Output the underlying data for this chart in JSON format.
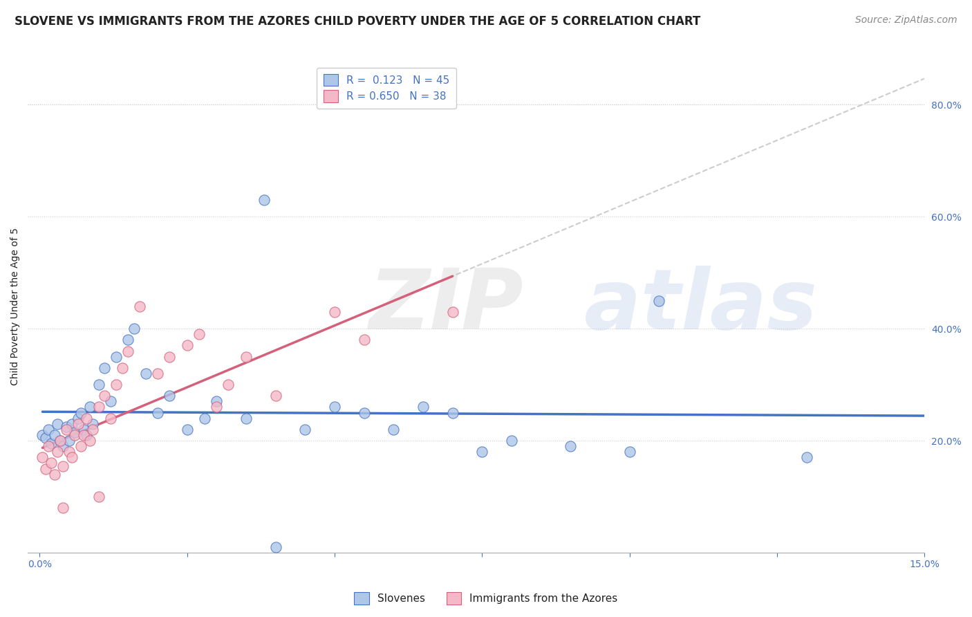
{
  "title": "SLOVENE VS IMMIGRANTS FROM THE AZORES CHILD POVERTY UNDER THE AGE OF 5 CORRELATION CHART",
  "source": "Source: ZipAtlas.com",
  "ylabel": "Child Poverty Under the Age of 5",
  "xlim": [
    0.0,
    15.0
  ],
  "ylim": [
    0.0,
    88.0
  ],
  "right_yticks": [
    20.0,
    40.0,
    60.0,
    80.0
  ],
  "legend_labels": [
    "Slovenes",
    "Immigrants from the Azores"
  ],
  "slovene_R": 0.123,
  "slovene_N": 45,
  "azores_R": 0.65,
  "azores_N": 38,
  "slovene_color": "#aec6e8",
  "azores_color": "#f4b8c8",
  "slovene_line_color": "#4472c4",
  "azores_line_color": "#d4607a",
  "regression_line_color": "#c0c0c0",
  "background_color": "#ffffff",
  "grid_color": "#d0d0d0",
  "title_color": "#222222",
  "source_color": "#888888",
  "label_color": "#4472c4",
  "slovene_scatter": [
    [
      0.05,
      21.0
    ],
    [
      0.1,
      20.5
    ],
    [
      0.15,
      22.0
    ],
    [
      0.2,
      19.5
    ],
    [
      0.25,
      21.0
    ],
    [
      0.3,
      23.0
    ],
    [
      0.35,
      20.0
    ],
    [
      0.4,
      19.0
    ],
    [
      0.45,
      22.5
    ],
    [
      0.5,
      20.0
    ],
    [
      0.55,
      23.0
    ],
    [
      0.6,
      21.5
    ],
    [
      0.65,
      24.0
    ],
    [
      0.7,
      25.0
    ],
    [
      0.75,
      22.0
    ],
    [
      0.8,
      21.0
    ],
    [
      0.85,
      26.0
    ],
    [
      0.9,
      23.0
    ],
    [
      1.0,
      30.0
    ],
    [
      1.1,
      33.0
    ],
    [
      1.2,
      27.0
    ],
    [
      1.3,
      35.0
    ],
    [
      1.5,
      38.0
    ],
    [
      1.6,
      40.0
    ],
    [
      1.8,
      32.0
    ],
    [
      2.0,
      25.0
    ],
    [
      2.2,
      28.0
    ],
    [
      2.5,
      22.0
    ],
    [
      2.8,
      24.0
    ],
    [
      3.0,
      27.0
    ],
    [
      3.5,
      24.0
    ],
    [
      3.8,
      63.0
    ],
    [
      4.5,
      22.0
    ],
    [
      5.0,
      26.0
    ],
    [
      5.5,
      25.0
    ],
    [
      6.0,
      22.0
    ],
    [
      6.5,
      26.0
    ],
    [
      7.0,
      25.0
    ],
    [
      7.5,
      18.0
    ],
    [
      8.0,
      20.0
    ],
    [
      9.0,
      19.0
    ],
    [
      10.0,
      18.0
    ],
    [
      10.5,
      45.0
    ],
    [
      13.0,
      17.0
    ],
    [
      4.0,
      1.0
    ]
  ],
  "azores_scatter": [
    [
      0.05,
      17.0
    ],
    [
      0.1,
      15.0
    ],
    [
      0.15,
      19.0
    ],
    [
      0.2,
      16.0
    ],
    [
      0.25,
      14.0
    ],
    [
      0.3,
      18.0
    ],
    [
      0.35,
      20.0
    ],
    [
      0.4,
      15.5
    ],
    [
      0.45,
      22.0
    ],
    [
      0.5,
      18.0
    ],
    [
      0.55,
      17.0
    ],
    [
      0.6,
      21.0
    ],
    [
      0.65,
      23.0
    ],
    [
      0.7,
      19.0
    ],
    [
      0.75,
      21.0
    ],
    [
      0.8,
      24.0
    ],
    [
      0.85,
      20.0
    ],
    [
      0.9,
      22.0
    ],
    [
      1.0,
      26.0
    ],
    [
      1.1,
      28.0
    ],
    [
      1.2,
      24.0
    ],
    [
      1.3,
      30.0
    ],
    [
      1.4,
      33.0
    ],
    [
      1.5,
      36.0
    ],
    [
      1.7,
      44.0
    ],
    [
      2.0,
      32.0
    ],
    [
      2.2,
      35.0
    ],
    [
      2.5,
      37.0
    ],
    [
      2.7,
      39.0
    ],
    [
      3.0,
      26.0
    ],
    [
      3.2,
      30.0
    ],
    [
      3.5,
      35.0
    ],
    [
      4.0,
      28.0
    ],
    [
      5.0,
      43.0
    ],
    [
      5.5,
      38.0
    ],
    [
      7.0,
      43.0
    ],
    [
      0.4,
      8.0
    ],
    [
      1.0,
      10.0
    ]
  ],
  "title_fontsize": 12,
  "source_fontsize": 10,
  "axis_label_fontsize": 10,
  "tick_fontsize": 10,
  "legend_fontsize": 11,
  "watermark_color": "#cccccc",
  "watermark_alpha": 0.35
}
